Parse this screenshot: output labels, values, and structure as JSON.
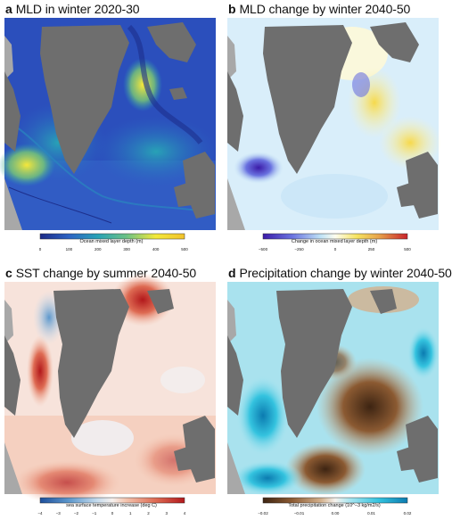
{
  "panels": {
    "a": {
      "letter": "a",
      "title": "MLD in winter 2020-30",
      "colorbar_label": "Ocean mixed layer depth (m)",
      "ticks": [
        "0",
        "100",
        "200",
        "300",
        "400",
        "500"
      ],
      "colors": [
        "#1c2a86",
        "#2c63c4",
        "#28a2b6",
        "#6cc285",
        "#f3e93a",
        "#f2c22b"
      ]
    },
    "b": {
      "letter": "b",
      "title": "MLD change by winter 2040-50",
      "colorbar_label": "Change in ocean mixed layer depth (m)",
      "ticks": [
        "−500",
        "−250",
        "0",
        "250",
        "500"
      ],
      "colors": [
        "#3b1ba8",
        "#6a72e0",
        "#bfe2f6",
        "#fdfdf0",
        "#f6e35f",
        "#e7a34b",
        "#c9232b"
      ]
    },
    "c": {
      "letter": "c",
      "title": "SST change by summer 2040-50",
      "colorbar_label": "sea surface temperature increase (deg C)",
      "ticks": [
        "−4",
        "−3",
        "−2",
        "−1",
        "0",
        "1",
        "2",
        "3",
        "4"
      ],
      "colors": [
        "#1e4f9c",
        "#5c97cc",
        "#c8ddee",
        "#f7f1ee",
        "#f3c1ab",
        "#de6b53",
        "#b2181b"
      ]
    },
    "d": {
      "letter": "d",
      "title": "Precipitation change by winter 2040-50",
      "colorbar_label": "Total precipitation change (10^−3 kg/m2/s)",
      "ticks": [
        "−0.02",
        "−0.01",
        "0.00",
        "0.01",
        "0.02"
      ],
      "colors": [
        "#3d2412",
        "#8b5a32",
        "#d3b08c",
        "#f6f3ee",
        "#a9e6f1",
        "#34c3df",
        "#0b7bb0"
      ]
    }
  }
}
